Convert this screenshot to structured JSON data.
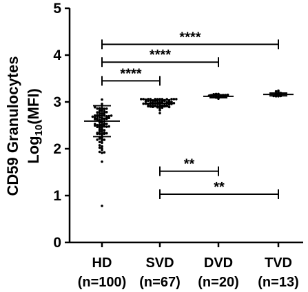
{
  "chart_data": {
    "type": "scatter",
    "ylabel_line1": "CD59 Granulocytes",
    "ylabel_line2_main": "Log",
    "ylabel_line2_sub": "10",
    "ylabel_line2_end": "(MFI)",
    "ylim": [
      0,
      5
    ],
    "yticks": [
      "0",
      "1",
      "2",
      "3",
      "4",
      "5"
    ],
    "grid": false,
    "legend": "none",
    "categories": [
      {
        "name": "HD",
        "n_label": "(n=100)",
        "count": 100,
        "mean": 2.59,
        "sd": 0.33,
        "min": 0.78,
        "max": 3.05
      },
      {
        "name": "SVD",
        "n_label": "(n=67)",
        "count": 67,
        "mean": 2.97,
        "sd": 0.07,
        "min": 2.76,
        "max": 3.06
      },
      {
        "name": "DVD",
        "n_label": "(n=20)",
        "count": 20,
        "mean": 3.12,
        "sd": 0.03,
        "min": 3.07,
        "max": 3.17
      },
      {
        "name": "TVD",
        "n_label": "(n=13)",
        "count": 13,
        "mean": 3.16,
        "sd": 0.03,
        "min": 3.12,
        "max": 3.24
      }
    ],
    "significance": [
      {
        "from": 0,
        "to": 3,
        "level": 4.23,
        "label": "****"
      },
      {
        "from": 0,
        "to": 2,
        "level": 3.85,
        "label": "****"
      },
      {
        "from": 0,
        "to": 1,
        "level": 3.45,
        "label": "****"
      },
      {
        "from": 1,
        "to": 2,
        "level": 1.52,
        "label": "**"
      },
      {
        "from": 1,
        "to": 3,
        "level": 1.03,
        "label": "**"
      }
    ]
  }
}
